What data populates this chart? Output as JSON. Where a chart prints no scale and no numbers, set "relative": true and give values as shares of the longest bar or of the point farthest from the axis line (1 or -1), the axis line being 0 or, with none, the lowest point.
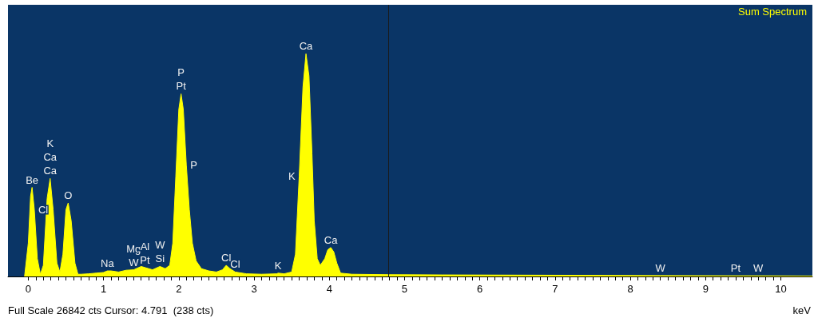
{
  "chart_data": {
    "type": "area",
    "relative": true,
    "xlabel": "keV",
    "xlim": [
      -0.27,
      10.42
    ],
    "xticks": [
      0,
      1,
      2,
      3,
      4,
      5,
      6,
      7,
      8,
      9,
      10
    ],
    "grid": false,
    "legend": "top right",
    "series": [
      {
        "name": "Sum Spectrum",
        "color": "#ffff00",
        "x": [
          -0.05,
          0.0,
          0.03,
          0.05,
          0.08,
          0.12,
          0.16,
          0.2,
          0.25,
          0.29,
          0.33,
          0.38,
          0.42,
          0.46,
          0.5,
          0.53,
          0.57,
          0.62,
          0.66,
          0.7,
          0.8,
          0.9,
          1.0,
          1.05,
          1.1,
          1.2,
          1.3,
          1.4,
          1.5,
          1.55,
          1.65,
          1.75,
          1.82,
          1.88,
          1.92,
          1.96,
          2.0,
          2.03,
          2.06,
          2.1,
          2.14,
          2.18,
          2.23,
          2.3,
          2.4,
          2.5,
          2.58,
          2.63,
          2.68,
          2.75,
          2.9,
          3.1,
          3.3,
          3.32,
          3.4,
          3.5,
          3.55,
          3.6,
          3.65,
          3.69,
          3.73,
          3.77,
          3.8,
          3.84,
          3.88,
          3.94,
          3.98,
          4.02,
          4.06,
          4.1,
          4.15,
          4.3,
          4.8,
          5.5,
          6.5,
          7.5,
          8.4,
          9.4,
          9.7,
          10.42
        ],
        "values": [
          0,
          0.15,
          0.36,
          0.4,
          0.3,
          0.08,
          0.01,
          0.05,
          0.35,
          0.44,
          0.3,
          0.06,
          0.02,
          0.1,
          0.3,
          0.33,
          0.25,
          0.06,
          0.01,
          0.01,
          0.012,
          0.015,
          0.018,
          0.025,
          0.025,
          0.02,
          0.028,
          0.03,
          0.045,
          0.04,
          0.03,
          0.045,
          0.035,
          0.05,
          0.15,
          0.45,
          0.75,
          0.82,
          0.75,
          0.5,
          0.3,
          0.15,
          0.07,
          0.035,
          0.025,
          0.02,
          0.03,
          0.05,
          0.035,
          0.02,
          0.012,
          0.01,
          0.012,
          0.015,
          0.012,
          0.02,
          0.1,
          0.45,
          0.85,
          1,
          0.9,
          0.55,
          0.25,
          0.08,
          0.05,
          0.08,
          0.12,
          0.13,
          0.11,
          0.06,
          0.015,
          0.01,
          0.008,
          0.007,
          0.006,
          0.005,
          0.004,
          0.003,
          0.003,
          0.002
        ]
      }
    ],
    "ref_lines": [
      {
        "axis": "x",
        "value": 4.791,
        "color": "#1a1a1a"
      }
    ],
    "annotations": [
      {
        "text": "Be",
        "x": 0.05,
        "y": 0.4
      },
      {
        "text": "Cl",
        "x": 0.08,
        "y": 0.3
      },
      {
        "text": "K",
        "x": 0.29,
        "y": 0.44
      },
      {
        "text": "Ca",
        "x": 0.29,
        "y": 0.44
      },
      {
        "text": "Ca",
        "x": 0.29,
        "y": 0.44
      },
      {
        "text": "O",
        "x": 0.53,
        "y": 0.33
      },
      {
        "text": "Na",
        "x": 1.05,
        "y": 0.025
      },
      {
        "text": "Mg",
        "x": 1.4,
        "y": 0.03
      },
      {
        "text": "Al",
        "x": 1.55,
        "y": 0.04
      },
      {
        "text": "W",
        "x": 1.4,
        "y": 0.03
      },
      {
        "text": "Pt",
        "x": 1.55,
        "y": 0.04
      },
      {
        "text": "W",
        "x": 1.75,
        "y": 0.045
      },
      {
        "text": "Si",
        "x": 1.75,
        "y": 0.045
      },
      {
        "text": "P",
        "x": 2.03,
        "y": 0.82
      },
      {
        "text": "Pt",
        "x": 2.03,
        "y": 0.82
      },
      {
        "text": "P",
        "x": 2.1,
        "y": 0.5
      },
      {
        "text": "Cl",
        "x": 2.63,
        "y": 0.05
      },
      {
        "text": "Cl",
        "x": 2.75,
        "y": 0.02
      },
      {
        "text": "K",
        "x": 3.32,
        "y": 0.015
      },
      {
        "text": "K",
        "x": 3.6,
        "y": 0.45
      },
      {
        "text": "Ca",
        "x": 3.69,
        "y": 1
      },
      {
        "text": "Ca",
        "x": 4.02,
        "y": 0.13
      },
      {
        "text": "W",
        "x": 8.4,
        "y": 0.004
      },
      {
        "text": "Pt",
        "x": 9.4,
        "y": 0.003
      },
      {
        "text": "W",
        "x": 9.7,
        "y": 0.003
      },
      "Full Scale 26842 cts Cursor: 4.791  (238 cts)"
    ]
  }
}
